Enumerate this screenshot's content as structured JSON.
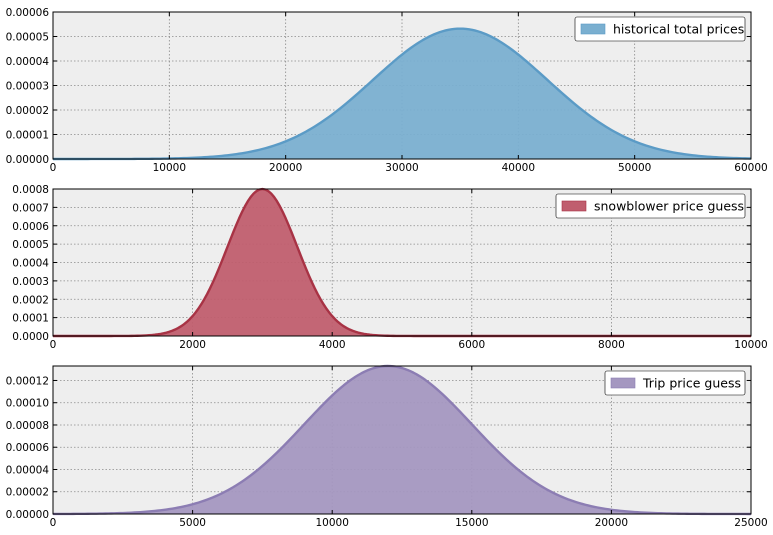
{
  "chart_data": [
    {
      "type": "area",
      "distribution": "normal",
      "mean": 35000,
      "sd": 7500,
      "peak_density": 5.32e-05,
      "xlim": [
        0,
        60000
      ],
      "ylim": [
        0,
        6e-05
      ],
      "xticks": [
        "0",
        "10000",
        "20000",
        "30000",
        "40000",
        "50000",
        "60000"
      ],
      "yticks": [
        "0.00000",
        "0.00001",
        "0.00002",
        "0.00003",
        "0.00004",
        "0.00005",
        "0.00006"
      ],
      "series": [
        {
          "name": "historical total prices",
          "color": "#7AAFD0",
          "line_color": "#5B9BC6"
        }
      ],
      "grid": true,
      "legend": "top-right",
      "title": "",
      "xlabel": "",
      "ylabel": ""
    },
    {
      "type": "area",
      "distribution": "normal",
      "mean": 3000,
      "sd": 500,
      "peak_density": 0.0008,
      "xlim": [
        0,
        10000
      ],
      "ylim": [
        0,
        0.0008
      ],
      "xticks": [
        "0",
        "2000",
        "4000",
        "6000",
        "8000",
        "10000"
      ],
      "yticks": [
        "0.0000",
        "0.0001",
        "0.0002",
        "0.0003",
        "0.0004",
        "0.0005",
        "0.0006",
        "0.0007",
        "0.0008"
      ],
      "series": [
        {
          "name": "snowblower price guess",
          "color": "#C05E6E",
          "line_color": "#A83345"
        }
      ],
      "grid": true,
      "legend": "top-right",
      "title": "",
      "xlabel": "",
      "ylabel": ""
    },
    {
      "type": "area",
      "distribution": "normal",
      "mean": 12000,
      "sd": 3000,
      "peak_density": 0.000133,
      "xlim": [
        0,
        25000
      ],
      "ylim": [
        0,
        0.000133
      ],
      "xticks": [
        "0",
        "5000",
        "10000",
        "15000",
        "20000",
        "25000"
      ],
      "yticks": [
        "0.00000",
        "0.00002",
        "0.00004",
        "0.00006",
        "0.00008",
        "0.00010",
        "0.00012"
      ],
      "ytick_values": [
        0,
        2e-05,
        4e-05,
        6e-05,
        8e-05,
        0.0001,
        0.00012
      ],
      "series": [
        {
          "name": "Trip price guess",
          "color": "#A497C0",
          "line_color": "#8C7DB3"
        }
      ],
      "grid": true,
      "legend": "top-right",
      "title": "",
      "xlabel": "",
      "ylabel": ""
    }
  ],
  "style": {
    "axes_background": "#EEEEEE",
    "axes_edge": "#000000",
    "grid_color": "#8A8A8A"
  }
}
